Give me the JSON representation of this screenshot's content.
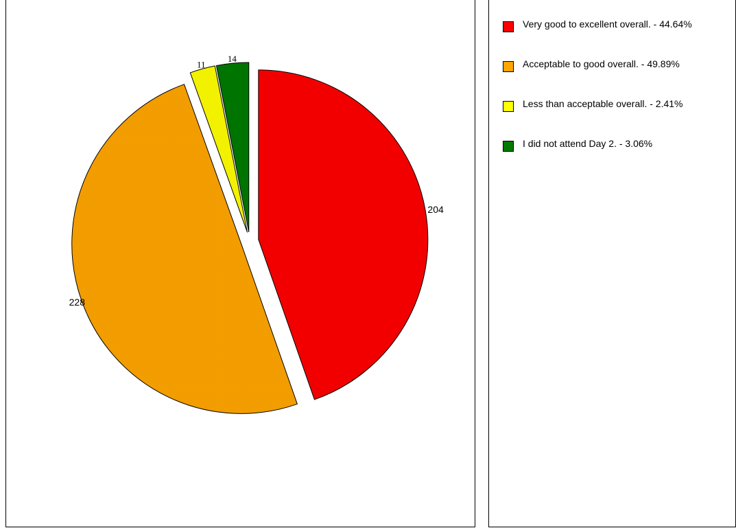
{
  "chart_data": {
    "type": "pie",
    "title": "",
    "slices": [
      {
        "name": "Very good to excellent overall.",
        "value": 204,
        "percent_label": "44.64%",
        "value_label": "204",
        "color": "#FF0000"
      },
      {
        "name": "Acceptable to good overall.",
        "value": 228,
        "percent_label": "49.89%",
        "value_label": "228",
        "color": "#FFA500"
      },
      {
        "name": "Less than acceptable overall.",
        "value": 11,
        "percent_label": "2.41%",
        "value_label": "11",
        "color": "#FFFF00"
      },
      {
        "name": "I did not attend Day 2.",
        "value": 14,
        "percent_label": "3.06%",
        "value_label": "14",
        "color": "#007A00"
      }
    ],
    "legend_position": "right",
    "exploded": true
  },
  "legend": {
    "items": [
      {
        "text": "Very good to excellent overall. - 44.64%",
        "color": "#FF0000"
      },
      {
        "text": "Acceptable to good overall. - 49.89%",
        "color": "#FFA500"
      },
      {
        "text": "Less than acceptable overall. - 2.41%",
        "color": "#FFFF00"
      },
      {
        "text": "I did not attend Day 2. - 3.06%",
        "color": "#007A00"
      }
    ]
  }
}
